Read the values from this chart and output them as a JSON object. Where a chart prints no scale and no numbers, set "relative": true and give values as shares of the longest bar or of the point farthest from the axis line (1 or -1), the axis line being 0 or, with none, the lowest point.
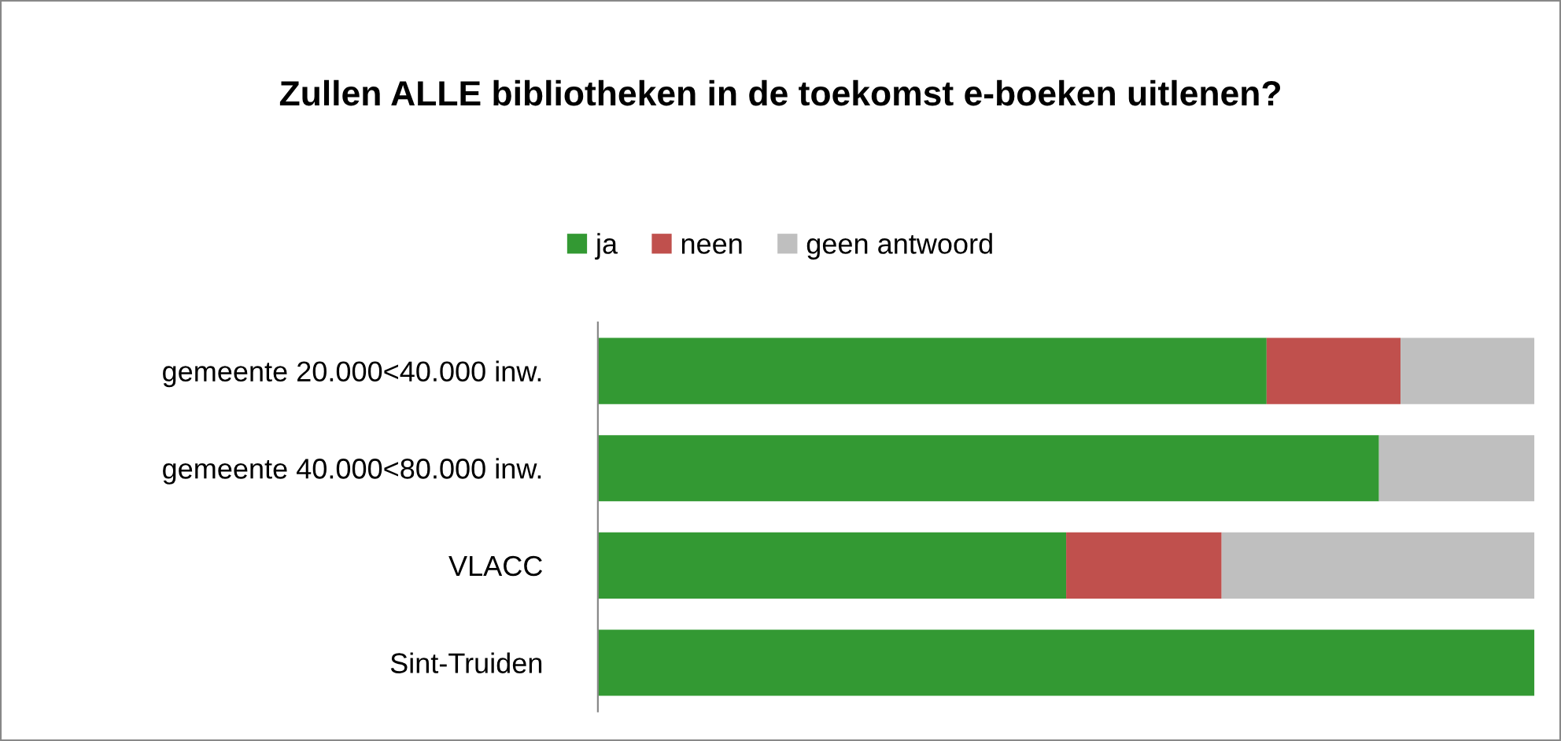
{
  "chart_data": {
    "type": "bar",
    "orientation": "horizontal",
    "stacked": true,
    "relative": true,
    "title": "Zullen ALLE bibliotheken in de toekomst e-boeken uitlenen?",
    "categories": [
      "gemeente 20.000<40.000 inw.",
      "gemeente 40.000<80.000 inw.",
      "VLACC",
      "Sint-Truiden"
    ],
    "series": [
      {
        "name": "ja",
        "color": "#339933",
        "values": [
          0.714,
          0.834,
          0.5,
          1
        ]
      },
      {
        "name": "neen",
        "color": "#c0504d",
        "values": [
          0.143,
          0,
          0.166,
          0
        ]
      },
      {
        "name": "geen antwoord",
        "color": "#bfbfbf",
        "values": [
          0.143,
          0.166,
          0.334,
          0
        ]
      }
    ],
    "legend": "top",
    "grid": false
  }
}
